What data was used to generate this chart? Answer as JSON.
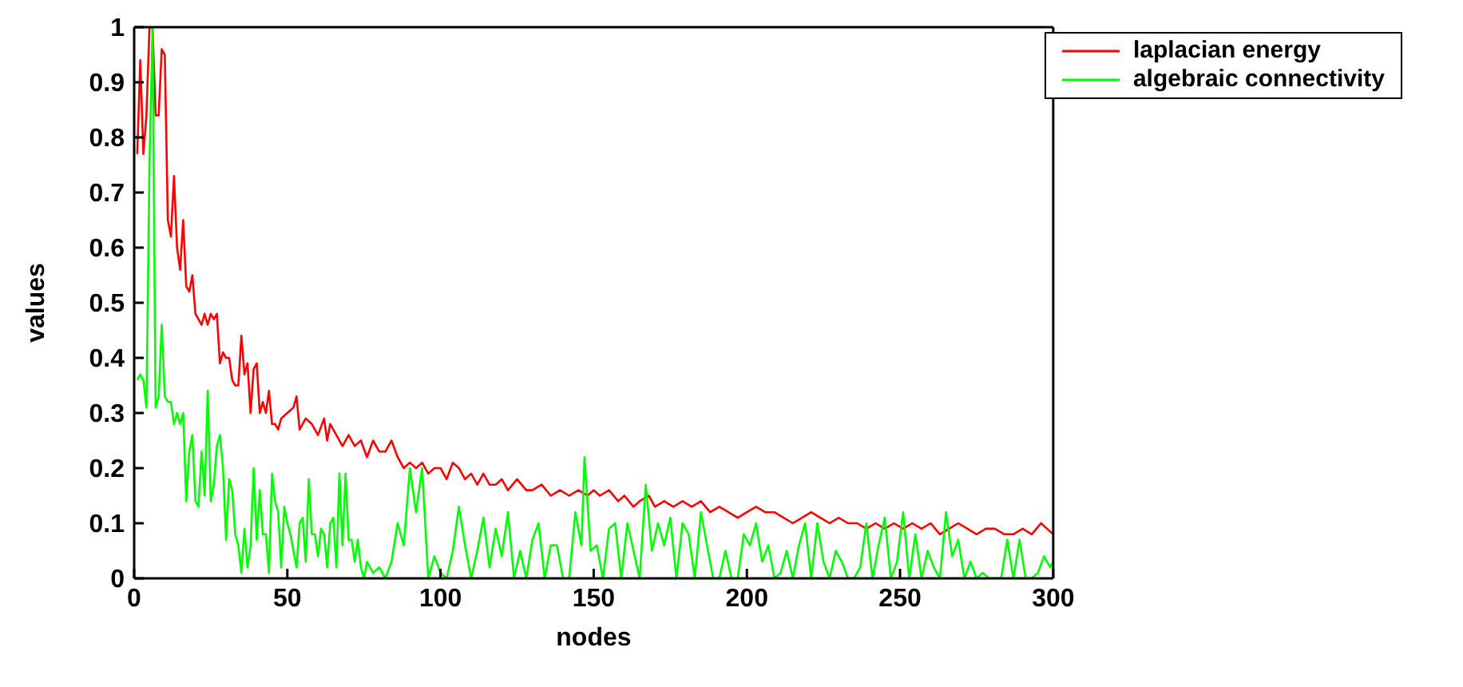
{
  "chart_data": {
    "type": "line",
    "xlabel": "nodes",
    "ylabel": "values",
    "xlim": [
      0,
      300
    ],
    "xticks": [
      0,
      50,
      100,
      150,
      200,
      250,
      300
    ],
    "ylim": [
      0,
      1
    ],
    "yticks": [
      0,
      0.1,
      0.2,
      0.3,
      0.4,
      0.5,
      0.6,
      0.7,
      0.8,
      0.9,
      1
    ],
    "grid": false,
    "legend": "top right",
    "marker": "none",
    "line_style": "solid",
    "series": [
      {
        "name": "laplacian energy",
        "color": "#ff0000",
        "x": [
          1,
          2,
          3,
          4,
          5,
          6,
          7,
          8,
          9,
          10,
          11,
          12,
          13,
          14,
          15,
          16,
          17,
          18,
          19,
          20,
          21,
          22,
          23,
          24,
          25,
          26,
          27,
          28,
          29,
          30,
          31,
          32,
          33,
          34,
          35,
          36,
          37,
          38,
          39,
          40,
          41,
          42,
          43,
          44,
          45,
          46,
          47,
          48,
          50,
          52,
          53,
          54,
          56,
          58,
          60,
          62,
          63,
          64,
          66,
          68,
          70,
          72,
          74,
          76,
          78,
          80,
          82,
          84,
          86,
          88,
          90,
          92,
          94,
          96,
          98,
          100,
          102,
          104,
          106,
          108,
          110,
          112,
          114,
          116,
          118,
          120,
          122,
          125,
          128,
          130,
          133,
          136,
          139,
          142,
          145,
          148,
          150,
          152,
          155,
          158,
          160,
          163,
          165,
          168,
          170,
          173,
          176,
          179,
          182,
          185,
          188,
          191,
          194,
          197,
          200,
          203,
          206,
          209,
          212,
          215,
          218,
          221,
          224,
          227,
          230,
          233,
          236,
          239,
          242,
          245,
          248,
          251,
          254,
          257,
          260,
          263,
          266,
          269,
          272,
          275,
          278,
          281,
          284,
          287,
          290,
          293,
          296,
          298,
          300
        ],
        "values": [
          0.77,
          0.94,
          0.77,
          0.84,
          1.0,
          1.0,
          0.84,
          0.84,
          0.96,
          0.95,
          0.65,
          0.62,
          0.73,
          0.6,
          0.56,
          0.65,
          0.53,
          0.52,
          0.55,
          0.48,
          0.47,
          0.46,
          0.48,
          0.46,
          0.48,
          0.47,
          0.48,
          0.39,
          0.41,
          0.4,
          0.4,
          0.36,
          0.35,
          0.35,
          0.44,
          0.37,
          0.39,
          0.3,
          0.38,
          0.39,
          0.3,
          0.32,
          0.3,
          0.34,
          0.28,
          0.28,
          0.27,
          0.29,
          0.3,
          0.31,
          0.33,
          0.27,
          0.29,
          0.28,
          0.26,
          0.29,
          0.25,
          0.28,
          0.26,
          0.24,
          0.26,
          0.24,
          0.25,
          0.22,
          0.25,
          0.23,
          0.23,
          0.25,
          0.22,
          0.2,
          0.21,
          0.2,
          0.21,
          0.19,
          0.2,
          0.2,
          0.18,
          0.21,
          0.2,
          0.18,
          0.19,
          0.17,
          0.19,
          0.17,
          0.17,
          0.18,
          0.16,
          0.18,
          0.16,
          0.16,
          0.17,
          0.15,
          0.16,
          0.15,
          0.16,
          0.15,
          0.16,
          0.15,
          0.16,
          0.14,
          0.15,
          0.13,
          0.14,
          0.15,
          0.13,
          0.14,
          0.13,
          0.14,
          0.13,
          0.14,
          0.12,
          0.13,
          0.12,
          0.11,
          0.12,
          0.13,
          0.12,
          0.12,
          0.11,
          0.1,
          0.11,
          0.12,
          0.11,
          0.1,
          0.11,
          0.1,
          0.1,
          0.09,
          0.1,
          0.09,
          0.1,
          0.09,
          0.1,
          0.09,
          0.1,
          0.08,
          0.09,
          0.1,
          0.09,
          0.08,
          0.09,
          0.09,
          0.08,
          0.08,
          0.09,
          0.08,
          0.1,
          0.09,
          0.08
        ]
      },
      {
        "name": "algebraic connectivity",
        "color": "#00ff00",
        "x": [
          1,
          2,
          3,
          4,
          5,
          6,
          7,
          8,
          9,
          10,
          11,
          12,
          13,
          14,
          15,
          16,
          17,
          18,
          19,
          20,
          21,
          22,
          23,
          24,
          25,
          26,
          27,
          28,
          29,
          30,
          31,
          32,
          33,
          34,
          35,
          36,
          37,
          38,
          39,
          40,
          41,
          42,
          43,
          44,
          45,
          46,
          47,
          48,
          49,
          50,
          51,
          52,
          53,
          54,
          55,
          56,
          57,
          58,
          59,
          60,
          61,
          62,
          63,
          64,
          65,
          66,
          67,
          68,
          69,
          70,
          71,
          72,
          73,
          74,
          75,
          76,
          78,
          80,
          82,
          84,
          86,
          88,
          90,
          92,
          94,
          96,
          98,
          100,
          102,
          104,
          106,
          108,
          110,
          112,
          114,
          116,
          118,
          120,
          122,
          124,
          126,
          128,
          130,
          132,
          134,
          136,
          138,
          140,
          142,
          144,
          146,
          147,
          149,
          151,
          153,
          155,
          157,
          159,
          161,
          163,
          165,
          167,
          169,
          171,
          173,
          175,
          177,
          179,
          181,
          183,
          185,
          187,
          189,
          191,
          193,
          195,
          197,
          199,
          201,
          203,
          205,
          207,
          209,
          211,
          213,
          215,
          217,
          219,
          221,
          223,
          225,
          227,
          229,
          231,
          233,
          235,
          237,
          239,
          241,
          243,
          245,
          247,
          249,
          251,
          253,
          255,
          257,
          259,
          261,
          263,
          265,
          267,
          269,
          271,
          273,
          275,
          277,
          279,
          281,
          283,
          285,
          287,
          289,
          291,
          293,
          295,
          297,
          299,
          300
        ],
        "values": [
          0.36,
          0.37,
          0.36,
          0.31,
          0.75,
          1.0,
          0.31,
          0.33,
          0.46,
          0.33,
          0.32,
          0.32,
          0.28,
          0.3,
          0.28,
          0.3,
          0.14,
          0.23,
          0.26,
          0.14,
          0.13,
          0.23,
          0.15,
          0.34,
          0.14,
          0.17,
          0.24,
          0.26,
          0.2,
          0.07,
          0.18,
          0.16,
          0.08,
          0.06,
          0.01,
          0.09,
          0.02,
          0.06,
          0.2,
          0.07,
          0.16,
          0.08,
          0.08,
          0.01,
          0.19,
          0.14,
          0.12,
          0.02,
          0.13,
          0.1,
          0.08,
          0.05,
          0.02,
          0.1,
          0.11,
          0.03,
          0.18,
          0.08,
          0.08,
          0.04,
          0.09,
          0.08,
          0.02,
          0.1,
          0.11,
          0.02,
          0.19,
          0.06,
          0.19,
          0.07,
          0.07,
          0.03,
          0.07,
          0.02,
          0,
          0.03,
          0.01,
          0.02,
          0,
          0.03,
          0.1,
          0.06,
          0.2,
          0.12,
          0.2,
          0,
          0.04,
          0.01,
          0,
          0.05,
          0.13,
          0.06,
          0,
          0.05,
          0.11,
          0.02,
          0.09,
          0.04,
          0.12,
          0,
          0.05,
          0,
          0.07,
          0.1,
          0,
          0.06,
          0.06,
          0,
          0,
          0.12,
          0.06,
          0.22,
          0.05,
          0.06,
          0,
          0.09,
          0.1,
          0,
          0.1,
          0.05,
          0,
          0.17,
          0.05,
          0.1,
          0.06,
          0.11,
          0,
          0.1,
          0.08,
          0,
          0.12,
          0.06,
          0,
          0,
          0.05,
          0,
          0,
          0.08,
          0.06,
          0.1,
          0.03,
          0.06,
          0,
          0.01,
          0.05,
          0,
          0.06,
          0.1,
          0,
          0.1,
          0.03,
          0,
          0.05,
          0.03,
          0,
          0,
          0.02,
          0.1,
          0,
          0.06,
          0.11,
          0,
          0.03,
          0.12,
          0,
          0.08,
          0,
          0.05,
          0.02,
          0,
          0.12,
          0.04,
          0.07,
          0,
          0.03,
          0,
          0.01,
          0,
          0,
          0,
          0.07,
          0,
          0.07,
          0,
          0,
          0.01,
          0.04,
          0.02,
          0.03
        ]
      }
    ]
  }
}
